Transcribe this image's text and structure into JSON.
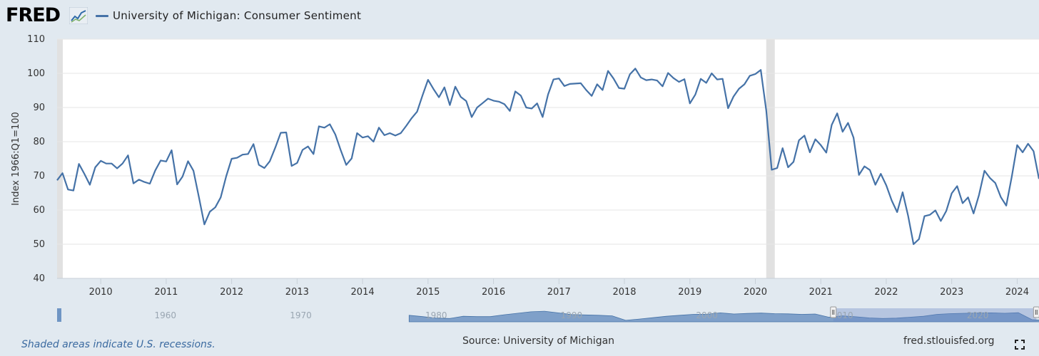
{
  "header": {
    "logo_text": "FRED",
    "series_title": "University of Michigan: Consumer Sentiment",
    "series_color": "#4572a7"
  },
  "footer": {
    "recession_note": "Shaded areas indicate U.S. recessions.",
    "source": "Source: University of Michigan",
    "site": "fred.stlouisfed.org"
  },
  "icons": {
    "logo_mark": "fred-chart-logo-icon",
    "fullscreen": "fullscreen-icon"
  },
  "chart_data": {
    "type": "line",
    "title": "",
    "ylabel": "Index 1966:Q1=100",
    "xlabel": "",
    "ylim": [
      40,
      110
    ],
    "yticks": [
      40,
      50,
      60,
      70,
      80,
      90,
      100,
      110
    ],
    "xlim": [
      "2009-05",
      "2024-05"
    ],
    "xticks": [
      "2010",
      "2011",
      "2012",
      "2013",
      "2014",
      "2015",
      "2016",
      "2017",
      "2018",
      "2019",
      "2020",
      "2021",
      "2022",
      "2023",
      "2024"
    ],
    "grid": "horizontal",
    "recessions": [
      {
        "start": "2020-03",
        "end": "2020-04"
      }
    ],
    "series": [
      {
        "name": "University of Michigan: Consumer Sentiment",
        "color": "#4572a7",
        "start": "2009-05",
        "frequency": "monthly",
        "values": [
          68.7,
          70.8,
          66.0,
          65.7,
          73.5,
          70.6,
          67.4,
          72.5,
          74.4,
          73.6,
          73.6,
          72.2,
          73.6,
          76.0,
          67.8,
          68.9,
          68.2,
          67.7,
          71.6,
          74.5,
          74.2,
          77.5,
          67.5,
          69.8,
          74.3,
          71.5,
          63.7,
          55.8,
          59.5,
          60.8,
          63.7,
          69.9,
          75.0,
          75.3,
          76.2,
          76.4,
          79.3,
          73.2,
          72.3,
          74.3,
          78.3,
          82.6,
          82.7,
          72.9,
          73.8,
          77.6,
          78.6,
          76.4,
          84.5,
          84.1,
          85.1,
          82.1,
          77.5,
          73.2,
          75.1,
          82.5,
          81.2,
          81.6,
          80.0,
          84.1,
          81.9,
          82.5,
          81.8,
          82.5,
          84.6,
          86.9,
          88.8,
          93.6,
          98.1,
          95.4,
          93.0,
          95.9,
          90.7,
          96.1,
          93.1,
          91.9,
          87.2,
          90.0,
          91.3,
          92.6,
          92.0,
          91.7,
          91.0,
          89.0,
          94.7,
          93.5,
          90.0,
          89.7,
          91.2,
          87.2,
          93.8,
          98.2,
          98.5,
          96.3,
          96.9,
          97.0,
          97.1,
          95.1,
          93.4,
          96.8,
          95.1,
          100.7,
          98.5,
          95.7,
          95.5,
          99.7,
          101.4,
          98.8,
          98.0,
          98.2,
          97.9,
          96.2,
          100.1,
          98.6,
          97.5,
          98.3,
          91.2,
          93.8,
          98.4,
          97.2,
          100.0,
          98.2,
          98.4,
          89.8,
          93.2,
          95.5,
          96.8,
          99.3,
          99.8,
          101.0,
          89.1,
          71.8,
          72.3,
          78.1,
          72.5,
          74.1,
          80.4,
          81.8,
          76.9,
          80.7,
          79.0,
          76.8,
          84.9,
          88.3,
          82.9,
          85.5,
          81.2,
          70.3,
          72.8,
          71.7,
          67.4,
          70.6,
          67.2,
          62.8,
          59.4,
          65.2,
          58.4,
          50.0,
          51.5,
          58.2,
          58.6,
          59.9,
          56.8,
          59.7,
          64.9,
          67.0,
          62.0,
          63.7,
          59.0,
          64.4,
          71.5,
          69.4,
          67.9,
          63.8,
          61.3,
          69.7,
          79.0,
          76.9,
          79.4,
          77.2,
          69.1
        ]
      }
    ],
    "navigator": {
      "tick_labels": [
        "1960",
        "1970",
        "1980",
        "1990",
        "2000",
        "2010",
        "2020"
      ],
      "range_start": "1952",
      "range_end": "2024",
      "selected_start": "2009-05",
      "selected_end": "2024-05",
      "values": [
        92.0,
        95.0,
        100.0,
        93.0,
        94.0,
        86.0,
        96.0,
        93.0,
        94.0,
        89.0,
        92.0,
        98.0,
        78.0,
        86.0,
        92.0,
        70.0,
        78.0,
        86.0,
        65.0,
        74.0,
        85.0,
        55.0,
        78.0,
        95.0,
        100.0,
        92.0,
        85.0,
        78.0,
        70.0,
        68.0,
        80.0,
        78.0,
        78.0,
        88.0,
        96.0,
        104.0,
        107.0,
        98.0,
        89.0,
        87.0,
        85.0,
        82.0,
        58.0,
        65.0,
        72.0,
        80.0,
        85.0,
        90.0,
        91.0,
        98.0,
        92.0,
        95.0,
        97.0,
        94.0,
        93.0,
        90.0,
        92.0,
        75.0,
        82.0,
        77.0,
        71.0,
        68.0,
        70.0,
        75.0,
        80.0,
        90.0,
        94.0,
        96.0,
        97.0,
        98.0,
        96.0,
        99.0,
        62.0,
        57.0
      ]
    }
  }
}
